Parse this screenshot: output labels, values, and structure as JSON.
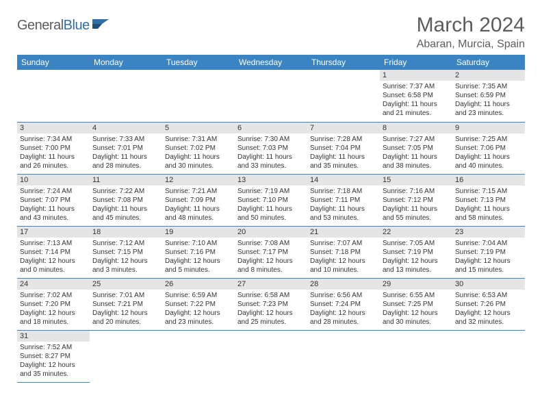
{
  "brand": {
    "part1": "General",
    "part2": "Blue"
  },
  "title": "March 2024",
  "location": "Abaran, Murcia, Spain",
  "weekdays": [
    "Sunday",
    "Monday",
    "Tuesday",
    "Wednesday",
    "Thursday",
    "Friday",
    "Saturday"
  ],
  "colors": {
    "header_bg": "#3b84c4",
    "header_text": "#ffffff",
    "daynum_bg": "#e5e5e5",
    "border": "#3b84c4",
    "text": "#333333",
    "title": "#5c5c5c",
    "brand_gray": "#5c5c5c",
    "brand_blue": "#2f6fa8"
  },
  "grid": [
    [
      null,
      null,
      null,
      null,
      null,
      {
        "n": "1",
        "sunrise": "7:37 AM",
        "sunset": "6:58 PM",
        "daylight": "11 hours and 21 minutes."
      },
      {
        "n": "2",
        "sunrise": "7:35 AM",
        "sunset": "6:59 PM",
        "daylight": "11 hours and 23 minutes."
      }
    ],
    [
      {
        "n": "3",
        "sunrise": "7:34 AM",
        "sunset": "7:00 PM",
        "daylight": "11 hours and 26 minutes."
      },
      {
        "n": "4",
        "sunrise": "7:33 AM",
        "sunset": "7:01 PM",
        "daylight": "11 hours and 28 minutes."
      },
      {
        "n": "5",
        "sunrise": "7:31 AM",
        "sunset": "7:02 PM",
        "daylight": "11 hours and 30 minutes."
      },
      {
        "n": "6",
        "sunrise": "7:30 AM",
        "sunset": "7:03 PM",
        "daylight": "11 hours and 33 minutes."
      },
      {
        "n": "7",
        "sunrise": "7:28 AM",
        "sunset": "7:04 PM",
        "daylight": "11 hours and 35 minutes."
      },
      {
        "n": "8",
        "sunrise": "7:27 AM",
        "sunset": "7:05 PM",
        "daylight": "11 hours and 38 minutes."
      },
      {
        "n": "9",
        "sunrise": "7:25 AM",
        "sunset": "7:06 PM",
        "daylight": "11 hours and 40 minutes."
      }
    ],
    [
      {
        "n": "10",
        "sunrise": "7:24 AM",
        "sunset": "7:07 PM",
        "daylight": "11 hours and 43 minutes."
      },
      {
        "n": "11",
        "sunrise": "7:22 AM",
        "sunset": "7:08 PM",
        "daylight": "11 hours and 45 minutes."
      },
      {
        "n": "12",
        "sunrise": "7:21 AM",
        "sunset": "7:09 PM",
        "daylight": "11 hours and 48 minutes."
      },
      {
        "n": "13",
        "sunrise": "7:19 AM",
        "sunset": "7:10 PM",
        "daylight": "11 hours and 50 minutes."
      },
      {
        "n": "14",
        "sunrise": "7:18 AM",
        "sunset": "7:11 PM",
        "daylight": "11 hours and 53 minutes."
      },
      {
        "n": "15",
        "sunrise": "7:16 AM",
        "sunset": "7:12 PM",
        "daylight": "11 hours and 55 minutes."
      },
      {
        "n": "16",
        "sunrise": "7:15 AM",
        "sunset": "7:13 PM",
        "daylight": "11 hours and 58 minutes."
      }
    ],
    [
      {
        "n": "17",
        "sunrise": "7:13 AM",
        "sunset": "7:14 PM",
        "daylight": "12 hours and 0 minutes."
      },
      {
        "n": "18",
        "sunrise": "7:12 AM",
        "sunset": "7:15 PM",
        "daylight": "12 hours and 3 minutes."
      },
      {
        "n": "19",
        "sunrise": "7:10 AM",
        "sunset": "7:16 PM",
        "daylight": "12 hours and 5 minutes."
      },
      {
        "n": "20",
        "sunrise": "7:08 AM",
        "sunset": "7:17 PM",
        "daylight": "12 hours and 8 minutes."
      },
      {
        "n": "21",
        "sunrise": "7:07 AM",
        "sunset": "7:18 PM",
        "daylight": "12 hours and 10 minutes."
      },
      {
        "n": "22",
        "sunrise": "7:05 AM",
        "sunset": "7:19 PM",
        "daylight": "12 hours and 13 minutes."
      },
      {
        "n": "23",
        "sunrise": "7:04 AM",
        "sunset": "7:19 PM",
        "daylight": "12 hours and 15 minutes."
      }
    ],
    [
      {
        "n": "24",
        "sunrise": "7:02 AM",
        "sunset": "7:20 PM",
        "daylight": "12 hours and 18 minutes."
      },
      {
        "n": "25",
        "sunrise": "7:01 AM",
        "sunset": "7:21 PM",
        "daylight": "12 hours and 20 minutes."
      },
      {
        "n": "26",
        "sunrise": "6:59 AM",
        "sunset": "7:22 PM",
        "daylight": "12 hours and 23 minutes."
      },
      {
        "n": "27",
        "sunrise": "6:58 AM",
        "sunset": "7:23 PM",
        "daylight": "12 hours and 25 minutes."
      },
      {
        "n": "28",
        "sunrise": "6:56 AM",
        "sunset": "7:24 PM",
        "daylight": "12 hours and 28 minutes."
      },
      {
        "n": "29",
        "sunrise": "6:55 AM",
        "sunset": "7:25 PM",
        "daylight": "12 hours and 30 minutes."
      },
      {
        "n": "30",
        "sunrise": "6:53 AM",
        "sunset": "7:26 PM",
        "daylight": "12 hours and 32 minutes."
      }
    ],
    [
      {
        "n": "31",
        "sunrise": "7:52 AM",
        "sunset": "8:27 PM",
        "daylight": "12 hours and 35 minutes."
      },
      null,
      null,
      null,
      null,
      null,
      null
    ]
  ],
  "labels": {
    "sunrise": "Sunrise:",
    "sunset": "Sunset:",
    "daylight": "Daylight:"
  }
}
